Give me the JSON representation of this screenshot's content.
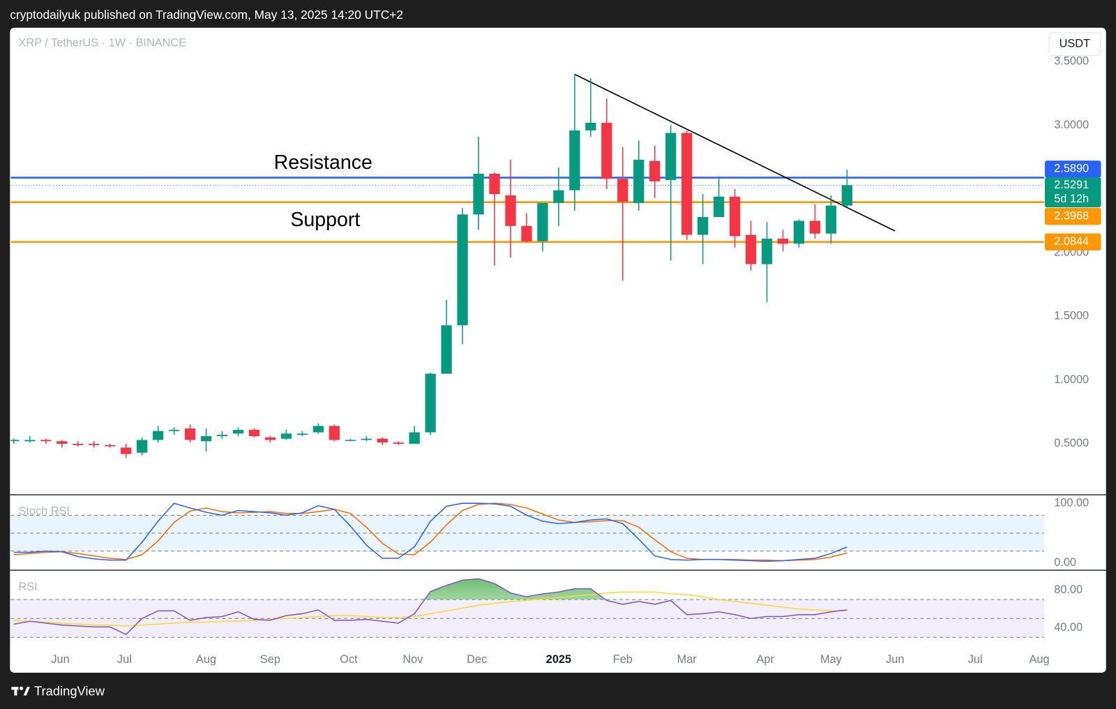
{
  "header": {
    "text": "cryptodailyuk published on TradingView.com, May 13, 2025 14:20 UTC+2"
  },
  "footer": {
    "brand": "TradingView"
  },
  "chart_data": {
    "type": "candlestick",
    "symbol": "XRP / TetherUS · 1W · BINANCE",
    "currency": "USDT",
    "up_color": "#089981",
    "down_color": "#f23645",
    "x": [
      0,
      1,
      2,
      3,
      4,
      5,
      6,
      7,
      8,
      9,
      10,
      11,
      12,
      13,
      14,
      15,
      16,
      17,
      18,
      19,
      20,
      21,
      22,
      23,
      24,
      25,
      26,
      27,
      28,
      29,
      30,
      31,
      32,
      33,
      34,
      35,
      36,
      37,
      38,
      39,
      40,
      41,
      42,
      43,
      44,
      45,
      46,
      47,
      48,
      49,
      50,
      51,
      52
    ],
    "open": [
      0.52,
      0.52,
      0.53,
      0.52,
      0.5,
      0.5,
      0.49,
      0.47,
      0.43,
      0.53,
      0.6,
      0.62,
      0.52,
      0.56,
      0.58,
      0.61,
      0.55,
      0.54,
      0.57,
      0.59,
      0.64,
      0.53,
      0.53,
      0.54,
      0.51,
      0.5,
      0.59,
      1.05,
      1.43,
      2.3,
      2.62,
      2.45,
      2.21,
      2.09,
      2.39,
      2.49,
      2.96,
      3.02,
      2.58,
      2.39,
      2.72,
      2.57,
      2.94,
      2.14,
      2.28,
      2.44,
      2.14,
      1.91,
      2.11,
      2.07,
      2.25,
      2.15,
      2.37
    ],
    "high": [
      0.54,
      0.56,
      0.54,
      0.53,
      0.52,
      0.52,
      0.5,
      0.5,
      0.55,
      0.64,
      0.63,
      0.65,
      0.62,
      0.6,
      0.63,
      0.62,
      0.56,
      0.61,
      0.6,
      0.66,
      0.65,
      0.54,
      0.56,
      0.55,
      0.52,
      0.64,
      1.06,
      1.63,
      2.35,
      2.91,
      2.63,
      2.73,
      2.31,
      2.39,
      2.67,
      3.4,
      3.37,
      3.21,
      2.83,
      2.88,
      2.84,
      3.0,
      2.96,
      2.46,
      2.6,
      2.5,
      2.25,
      2.24,
      2.18,
      2.26,
      2.38,
      2.45,
      2.65
    ],
    "low": [
      0.5,
      0.51,
      0.5,
      0.47,
      0.48,
      0.47,
      0.47,
      0.39,
      0.41,
      0.51,
      0.57,
      0.51,
      0.44,
      0.54,
      0.56,
      0.55,
      0.51,
      0.53,
      0.56,
      0.58,
      0.52,
      0.52,
      0.52,
      0.49,
      0.49,
      0.5,
      0.57,
      1.05,
      1.28,
      2.18,
      1.9,
      1.96,
      2.08,
      2.01,
      2.21,
      2.33,
      2.91,
      2.5,
      1.78,
      2.33,
      2.43,
      1.94,
      2.1,
      1.91,
      2.31,
      2.04,
      1.86,
      1.61,
      2.01,
      2.04,
      2.11,
      2.07,
      2.36
    ],
    "close": [
      0.53,
      0.53,
      0.52,
      0.5,
      0.49,
      0.49,
      0.48,
      0.42,
      0.53,
      0.6,
      0.61,
      0.53,
      0.56,
      0.57,
      0.61,
      0.56,
      0.53,
      0.58,
      0.58,
      0.64,
      0.53,
      0.53,
      0.54,
      0.51,
      0.5,
      0.59,
      1.05,
      1.43,
      2.3,
      2.62,
      2.46,
      2.21,
      2.09,
      2.39,
      2.49,
      2.96,
      3.02,
      2.58,
      2.4,
      2.73,
      2.56,
      2.94,
      2.14,
      2.28,
      2.44,
      2.13,
      1.91,
      2.11,
      2.07,
      2.25,
      2.15,
      2.37,
      2.53
    ],
    "xlim": [
      -0.2,
      64.3
    ],
    "xticks": [
      {
        "value": 2.9,
        "label": "Jun"
      },
      {
        "value": 6.9,
        "label": "Jul"
      },
      {
        "value": 12,
        "label": "Aug"
      },
      {
        "value": 16,
        "label": "Sep"
      },
      {
        "value": 20.9,
        "label": "Oct"
      },
      {
        "value": 24.9,
        "label": "Nov"
      },
      {
        "value": 28.9,
        "label": "Dec"
      },
      {
        "value": 34,
        "label": "2025"
      },
      {
        "value": 38,
        "label": "Feb"
      },
      {
        "value": 42,
        "label": "Mar"
      },
      {
        "value": 46.9,
        "label": "Apr"
      },
      {
        "value": 51,
        "label": "May"
      },
      {
        "value": 55,
        "label": "Jun"
      },
      {
        "value": 60,
        "label": "Jul"
      },
      {
        "value": 64,
        "label": "Aug"
      }
    ],
    "ylim": [
      0.1,
      3.76
    ],
    "yticks": [
      {
        "value": 0.5,
        "label": "0.5000"
      },
      {
        "value": 1,
        "label": "1.0000"
      },
      {
        "value": 1.5,
        "label": "1.5000"
      },
      {
        "value": 2,
        "label": "2.0000"
      },
      {
        "value": 3,
        "label": "3.0000"
      },
      {
        "value": 3.5,
        "label": "3.5000"
      }
    ],
    "levels": [
      {
        "value": 2.589,
        "label": "2.5890",
        "color": "#2962ff"
      },
      {
        "value": 2.3968,
        "label": "2.3968",
        "color": "#ff9800"
      },
      {
        "value": 2.0844,
        "label": "2.0844",
        "color": "#ff9800"
      }
    ],
    "annotations": [
      {
        "text": "Resistance"
      },
      {
        "text": "Support"
      }
    ],
    "last_price": {
      "value": 2.5291,
      "label": "2.5291",
      "countdown": "5d 12h",
      "color": "#089981"
    },
    "trendline": {
      "x": [
        35,
        55
      ],
      "y": [
        3.4,
        2.17
      ],
      "color": "#000000"
    },
    "panes": [
      {
        "title": "Stoch RSI",
        "ylim": [
          -10.7,
          111.9
        ],
        "yticks": [
          {
            "value": 100,
            "label": "100.00"
          },
          {
            "value": 0,
            "label": "0.00"
          }
        ],
        "levels": [
          20,
          50,
          80
        ],
        "band_color": "#2196f3",
        "series": [
          {
            "color": "#2962ff",
            "values": [
              18,
              18,
              20,
              19,
              11,
              7,
              5,
              5,
              35,
              70,
              100,
              92,
              85,
              80,
              88,
              86,
              84,
              80,
              84,
              96,
              90,
              62,
              30,
              8,
              8,
              27,
              70,
              95,
              100,
              100,
              99,
              95,
              80,
              70,
              66,
              68,
              72,
              74,
              66,
              40,
              12,
              6,
              5,
              6,
              6,
              5,
              4,
              3,
              4,
              6,
              8,
              16,
              27
            ]
          },
          {
            "color": "#ff6d00",
            "values": [
              14,
              16,
              18,
              19,
              16,
              12,
              8,
              6,
              14,
              37,
              68,
              87,
              92,
              86,
              84,
              85,
              86,
              83,
              83,
              86,
              90,
              83,
              60,
              33,
              15,
              14,
              35,
              64,
              88,
              98,
              100,
              98,
              92,
              82,
              72,
              68,
              69,
              71,
              71,
              60,
              39,
              19,
              8,
              6,
              6,
              6,
              5,
              5,
              4,
              5,
              6,
              10,
              17
            ]
          }
        ]
      },
      {
        "title": "RSI",
        "ylim": [
          18.9,
          99.6
        ],
        "yticks": [
          {
            "value": 80,
            "label": "80.00"
          },
          {
            "value": 40,
            "label": "40.00"
          }
        ],
        "levels": [
          30,
          50,
          70
        ],
        "band_color": "#7e57c2",
        "overbought_color": "#4caf50",
        "series": [
          {
            "color": "#7e57c2",
            "values": [
              44,
              47,
              45,
              43,
              42,
              41,
              41,
              33,
              50,
              58,
              58,
              48,
              51,
              52,
              57,
              49,
              48,
              53,
              55,
              59,
              48,
              48,
              49,
              47,
              45,
              55,
              78.5,
              85,
              90.5,
              92,
              87,
              77,
              73,
              76,
              78,
              81.5,
              81.5,
              69,
              65,
              68,
              65,
              69,
              54,
              55,
              57,
              54,
              50,
              52,
              52,
              54,
              54,
              57,
              59
            ]
          },
          {
            "color": "#fdd835",
            "values": [
              48,
              47,
              46,
              45,
              44,
              43,
              43,
              42,
              43,
              44,
              45,
              46,
              46,
              47,
              47,
              48,
              49,
              50,
              51,
              52,
              53,
              53,
              52,
              51,
              51,
              52,
              55,
              58,
              61,
              64,
              66,
              68,
              69,
              71,
              72,
              74,
              75,
              77,
              78,
              78,
              78,
              76,
              75,
              73,
              70,
              68,
              66,
              64,
              62,
              60,
              59,
              58,
              58
            ]
          }
        ]
      }
    ]
  }
}
